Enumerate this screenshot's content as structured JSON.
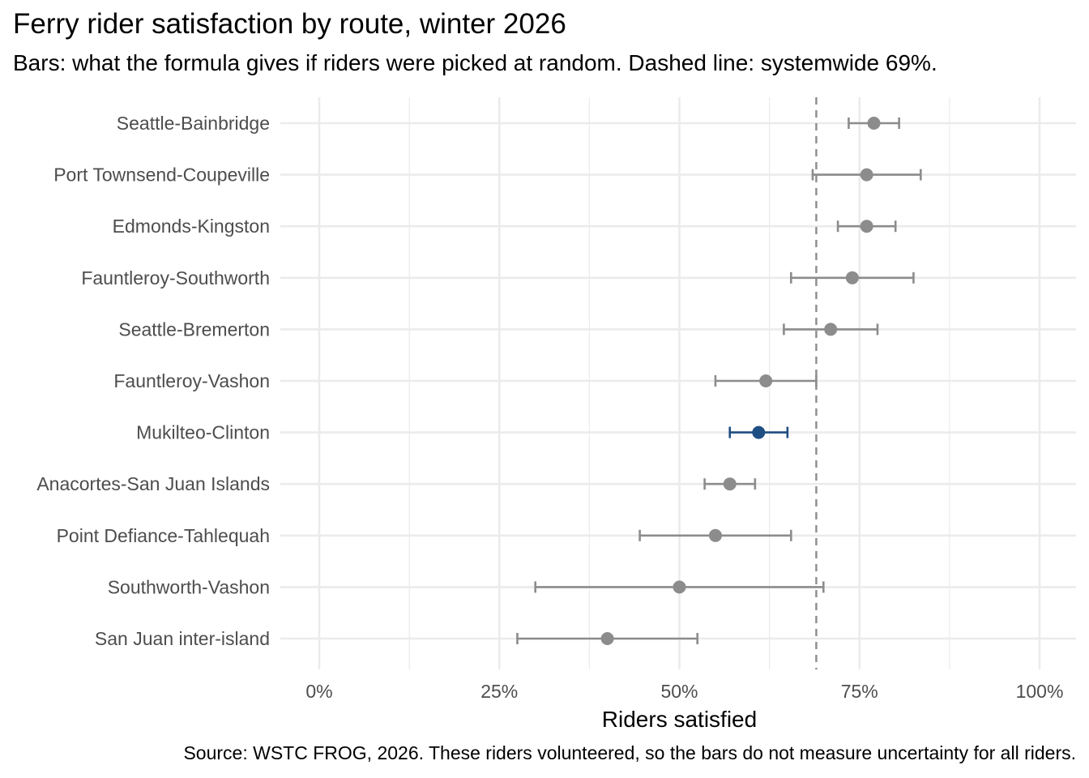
{
  "chart_data": {
    "type": "errorbar",
    "title": "Ferry rider satisfaction by route, winter 2026",
    "subtitle": "Bars: what the formula gives if riders were picked at random. Dashed line: systemwide 69%.",
    "caption": "Source: WSTC FROG, 2026. These riders volunteered, so the bars do not measure uncertainty for all riders.",
    "xlabel": "Riders satisfied",
    "ylabel": "",
    "xlim": [
      0,
      1
    ],
    "xticks": [
      0,
      0.25,
      0.5,
      0.75,
      1.0
    ],
    "xtick_labels": [
      "0%",
      "25%",
      "50%",
      "75%",
      "100%"
    ],
    "reference_line": 0.69,
    "grid": true,
    "colors": {
      "default": "#8c8c8c",
      "highlight": "#1f4e82",
      "reference": "#8c8c8c",
      "grid": "#ebebeb"
    },
    "highlight": "Mukilteo-Clinton",
    "points": [
      {
        "route": "Seattle-Bainbridge",
        "value": 0.77,
        "low": 0.735,
        "high": 0.805
      },
      {
        "route": "Port Townsend-Coupeville",
        "value": 0.76,
        "low": 0.685,
        "high": 0.835
      },
      {
        "route": "Edmonds-Kingston",
        "value": 0.76,
        "low": 0.72,
        "high": 0.8
      },
      {
        "route": "Fauntleroy-Southworth",
        "value": 0.74,
        "low": 0.655,
        "high": 0.825
      },
      {
        "route": "Seattle-Bremerton",
        "value": 0.71,
        "low": 0.645,
        "high": 0.775
      },
      {
        "route": "Fauntleroy-Vashon",
        "value": 0.62,
        "low": 0.55,
        "high": 0.69
      },
      {
        "route": "Mukilteo-Clinton",
        "value": 0.61,
        "low": 0.57,
        "high": 0.65
      },
      {
        "route": "Anacortes-San Juan Islands",
        "value": 0.57,
        "low": 0.535,
        "high": 0.605
      },
      {
        "route": "Point Defiance-Tahlequah",
        "value": 0.55,
        "low": 0.445,
        "high": 0.655
      },
      {
        "route": "Southworth-Vashon",
        "value": 0.5,
        "low": 0.3,
        "high": 0.7
      },
      {
        "route": "San Juan inter-island",
        "value": 0.4,
        "low": 0.275,
        "high": 0.525
      }
    ]
  }
}
